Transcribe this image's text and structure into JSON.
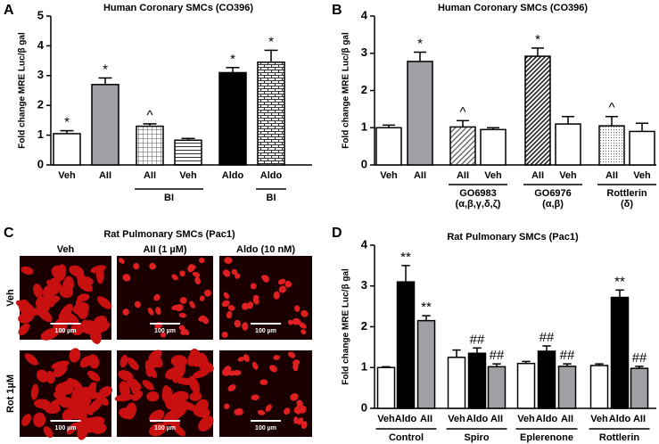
{
  "chart_data": [
    {
      "type": "bar",
      "panel": "A",
      "title": "Human Coronary SMCs (CO396)",
      "ylabel": "Fold change  MRE Luc/β gal",
      "categories": [
        "Veh",
        "AII",
        "AII",
        "Veh",
        "Aldo",
        "Aldo"
      ],
      "values": [
        1.05,
        2.7,
        1.3,
        0.83,
        3.1,
        3.45
      ],
      "errors": [
        0.1,
        0.22,
        0.08,
        0.06,
        0.17,
        0.4
      ],
      "annotations": [
        "*",
        "*",
        "^",
        null,
        "*",
        "*"
      ],
      "fills": [
        "#ffffff",
        "#a0a0a4",
        "grid",
        "hstripe",
        "#000000",
        "brick"
      ],
      "groups": [
        {
          "label": [
            "BI"
          ],
          "start": 2,
          "end": 3
        },
        {
          "label": [
            "BI"
          ],
          "start": 5,
          "end": 5
        }
      ],
      "ylim": [
        0,
        5
      ],
      "yticks": [
        0,
        1,
        2,
        3,
        4,
        5
      ]
    },
    {
      "type": "bar",
      "panel": "B",
      "title": "Human Coronary SMCs (CO396)",
      "ylabel": "Fold change  MRE Luc/β gal",
      "categories": [
        "Veh",
        "AII",
        "AII",
        "Veh",
        "AII",
        "Veh",
        "AII",
        "Veh"
      ],
      "values": [
        1.0,
        2.78,
        1.02,
        0.95,
        2.92,
        1.1,
        1.05,
        0.9
      ],
      "errors": [
        0.07,
        0.25,
        0.17,
        0.05,
        0.22,
        0.2,
        0.25,
        0.22
      ],
      "annotations": [
        null,
        "*",
        "^",
        null,
        "*",
        null,
        "^",
        null
      ],
      "fills": [
        "#ffffff",
        "#a0a0a4",
        "diag",
        "#ffffff",
        "diag2",
        "#ffffff",
        "dots",
        "#ffffff"
      ],
      "groups": [
        {
          "label": [
            "GO6983",
            "(α,β,γ,δ,ζ)"
          ],
          "start": 2,
          "end": 3
        },
        {
          "label": [
            "GO6976",
            "(α,β)"
          ],
          "start": 4,
          "end": 5
        },
        {
          "label": [
            "Rottlerin",
            "(δ)"
          ],
          "start": 6,
          "end": 7
        }
      ],
      "ylim": [
        0,
        4
      ],
      "yticks": [
        0,
        1,
        2,
        3,
        4
      ]
    },
    {
      "type": "bar",
      "panel": "D",
      "title": "Rat Pulmonary SMCs (Pac1)",
      "ylabel": "Fold change  MRE Luc/β gal",
      "categories": [
        "Veh",
        "Aldo",
        "AII",
        "Veh",
        "Aldo",
        "AII",
        "Veh",
        "Aldo",
        "AII",
        "Veh",
        "Aldo",
        "AII"
      ],
      "values": [
        1.0,
        3.1,
        2.15,
        1.25,
        1.35,
        1.02,
        1.1,
        1.4,
        1.03,
        1.05,
        2.72,
        0.98
      ],
      "errors": [
        0.02,
        0.4,
        0.12,
        0.18,
        0.13,
        0.07,
        0.05,
        0.13,
        0.06,
        0.04,
        0.18,
        0.05
      ],
      "annotations": [
        null,
        "**",
        "**",
        null,
        "##",
        "##",
        null,
        "##",
        "##",
        null,
        "**",
        "##"
      ],
      "fills": [
        "#ffffff",
        "#000000",
        "#a0a0a4",
        "#ffffff",
        "#000000",
        "#a0a0a4",
        "#ffffff",
        "#000000",
        "#a0a0a4",
        "#ffffff",
        "#000000",
        "#a0a0a4"
      ],
      "groups": [
        {
          "label": [
            "Control"
          ],
          "start": 0,
          "end": 2
        },
        {
          "label": [
            "Spiro"
          ],
          "start": 3,
          "end": 5
        },
        {
          "label": [
            "Eplerenone"
          ],
          "start": 6,
          "end": 8
        },
        {
          "label": [
            "Rottlerin"
          ],
          "start": 9,
          "end": 11
        }
      ],
      "ylim": [
        0,
        4
      ],
      "yticks": [
        0,
        1,
        2,
        3,
        4
      ]
    }
  ],
  "panel_c": {
    "panel": "C",
    "title": "Rat Pulmonary SMCs (Pac1)",
    "columns": [
      "Veh",
      "AII (1 µM)",
      "Aldo (10 nM)"
    ],
    "rows": [
      "Veh",
      "Rot 1µM"
    ],
    "scale_labels": [
      "100 µm",
      "100 µm",
      "100 µm",
      "100 µm",
      "100 µm",
      "100 µm"
    ]
  }
}
